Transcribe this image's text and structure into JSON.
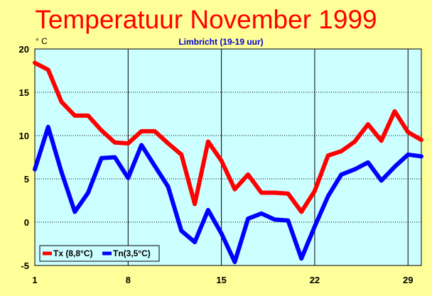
{
  "chart_data": {
    "type": "line",
    "title": "Temperatuur November 1999",
    "subtitle": "Limbricht (19-19 uur)",
    "ylabel": "° C",
    "xlabel": "",
    "xlim": [
      1,
      30
    ],
    "ylim": [
      -5,
      20
    ],
    "x_ticks": [
      1,
      8,
      15,
      22,
      29
    ],
    "y_ticks": [
      -5,
      0,
      5,
      10,
      15,
      20
    ],
    "grid": true,
    "legend_position": "bottom-left",
    "x": [
      1,
      2,
      3,
      4,
      5,
      6,
      7,
      8,
      9,
      10,
      11,
      12,
      13,
      14,
      15,
      16,
      17,
      18,
      19,
      20,
      21,
      22,
      23,
      24,
      25,
      26,
      27,
      28,
      29,
      30
    ],
    "series": [
      {
        "name": "Tx (8,8°C)",
        "color": "#ff0000",
        "values": [
          18.4,
          17.6,
          13.9,
          12.3,
          12.3,
          10.6,
          9.2,
          9.1,
          10.5,
          10.5,
          9.1,
          7.8,
          2.1,
          9.3,
          7.1,
          3.8,
          5.5,
          3.4,
          3.4,
          3.3,
          1.2,
          3.6,
          7.7,
          8.2,
          9.3,
          11.3,
          9.4,
          12.8,
          10.4,
          9.5
        ]
      },
      {
        "name": "Tn(3,5°C)",
        "color": "#0000ff",
        "values": [
          6.1,
          11.0,
          5.8,
          1.2,
          3.4,
          7.4,
          7.5,
          5.1,
          8.9,
          6.5,
          4.1,
          -1.0,
          -2.3,
          1.4,
          -1.3,
          -4.6,
          0.4,
          1.0,
          0.3,
          0.2,
          -4.2,
          -0.5,
          3.0,
          5.5,
          6.1,
          6.9,
          4.8,
          6.4,
          7.8,
          7.6
        ]
      }
    ]
  }
}
